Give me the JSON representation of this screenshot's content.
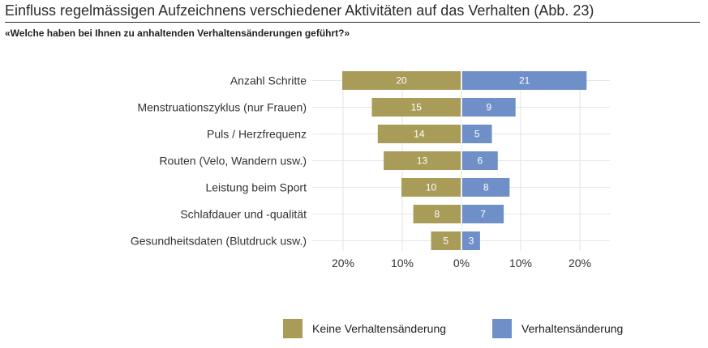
{
  "header": {
    "title": "Einfluss regelmässigen Aufzeichnens verschiedener Aktivitäten auf das Verhalten  (Abb. 23)",
    "subtitle": "«Welche haben bei Ihnen zu anhaltenden Verhaltensänderungen geführt?»"
  },
  "chart_data": {
    "type": "bar",
    "orientation": "horizontal-diverging",
    "categories": [
      "Anzahl Schritte",
      "Menstruationszyklus (nur Frauen)",
      "Puls / Herzfrequenz",
      "Routen (Velo, Wandern usw.)",
      "Leistung beim Sport",
      "Schlafdauer und -qualität",
      "Gesundheitsdaten (Blutdruck usw.)"
    ],
    "series": [
      {
        "name": "Keine Verhaltensänderung",
        "color": "#a99c58",
        "side": "left",
        "values": [
          20,
          15,
          14,
          13,
          10,
          8,
          5
        ]
      },
      {
        "name": "Verhaltensänderung",
        "color": "#6f8fc8",
        "side": "right",
        "values": [
          21,
          9,
          5,
          6,
          8,
          7,
          3
        ]
      }
    ],
    "xticks": [
      "20%",
      "10%",
      "0%",
      "10%",
      "20%"
    ],
    "xlim": [
      -20,
      20
    ],
    "grid": true,
    "legend_position": "bottom"
  }
}
